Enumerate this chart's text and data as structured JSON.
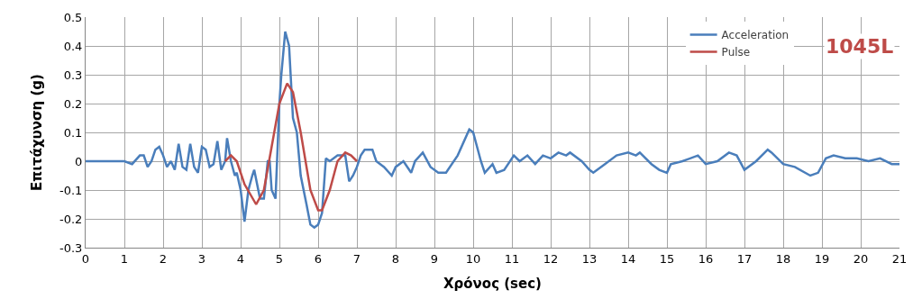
{
  "chart_data": {
    "type": "line",
    "xlabel": "Χρόνος (sec)",
    "ylabel": "Επιτάχυνση (g)",
    "xlim": [
      0,
      21
    ],
    "ylim": [
      -0.3,
      0.5
    ],
    "xticks": [
      0,
      1,
      2,
      3,
      4,
      5,
      6,
      7,
      8,
      9,
      10,
      11,
      12,
      13,
      14,
      15,
      16,
      17,
      18,
      19,
      20,
      21
    ],
    "yticks": [
      -0.3,
      -0.2,
      -0.1,
      0,
      0.1,
      0.2,
      0.3,
      0.4,
      0.5
    ],
    "grid": true,
    "legend": "top right",
    "marker": "none",
    "line_style": "solid",
    "annotations": [
      "1045L"
    ],
    "series": [
      {
        "name": "Acceleration",
        "color": "#4a7ebb",
        "x": [
          0,
          0.5,
          1.0,
          1.2,
          1.4,
          1.5,
          1.6,
          1.7,
          1.8,
          1.9,
          2.0,
          2.1,
          2.2,
          2.3,
          2.4,
          2.5,
          2.6,
          2.7,
          2.8,
          2.9,
          3.0,
          3.1,
          3.2,
          3.3,
          3.4,
          3.5,
          3.6,
          3.65,
          3.75,
          3.85,
          3.9,
          4.0,
          4.1,
          4.2,
          4.3,
          4.35,
          4.5,
          4.6,
          4.7,
          4.75,
          4.8,
          4.9,
          5.0,
          5.05,
          5.15,
          5.25,
          5.35,
          5.45,
          5.55,
          5.7,
          5.8,
          5.9,
          6.0,
          6.1,
          6.2,
          6.3,
          6.5,
          6.7,
          6.8,
          6.9,
          7.0,
          7.1,
          7.2,
          7.4,
          7.5,
          7.7,
          7.9,
          8.0,
          8.2,
          8.4,
          8.5,
          8.7,
          8.9,
          9.1,
          9.3,
          9.6,
          9.9,
          10.0,
          10.2,
          10.3,
          10.5,
          10.6,
          10.8,
          11.05,
          11.2,
          11.4,
          11.6,
          11.8,
          12.0,
          12.2,
          12.4,
          12.5,
          12.8,
          13.0,
          13.1,
          13.4,
          13.7,
          14.0,
          14.2,
          14.3,
          14.6,
          14.8,
          15.0,
          15.1,
          15.4,
          15.8,
          16.0,
          16.3,
          16.6,
          16.8,
          17.0,
          17.3,
          17.6,
          17.7,
          18.0,
          18.3,
          18.7,
          18.9,
          19.1,
          19.3,
          19.6,
          19.9,
          20.2,
          20.5,
          20.8,
          21.0
        ],
        "values": [
          0,
          0,
          0,
          -0.01,
          0.02,
          0.02,
          -0.02,
          0.0,
          0.04,
          0.05,
          0.02,
          -0.02,
          0.0,
          -0.03,
          0.06,
          -0.02,
          -0.03,
          0.06,
          -0.02,
          -0.04,
          0.05,
          0.04,
          -0.02,
          -0.01,
          0.07,
          -0.03,
          0.0,
          0.08,
          0.0,
          -0.05,
          -0.04,
          -0.1,
          -0.21,
          -0.1,
          -0.05,
          -0.03,
          -0.13,
          -0.13,
          0.0,
          0.0,
          -0.1,
          -0.13,
          0.2,
          0.3,
          0.45,
          0.4,
          0.15,
          0.1,
          -0.05,
          -0.15,
          -0.22,
          -0.23,
          -0.22,
          -0.18,
          0.01,
          0.0,
          0.02,
          0.02,
          -0.07,
          -0.05,
          -0.02,
          0.02,
          0.04,
          0.04,
          0.0,
          -0.02,
          -0.05,
          -0.02,
          0.0,
          -0.04,
          0.0,
          0.03,
          -0.02,
          -0.04,
          -0.04,
          0.02,
          0.11,
          0.1,
          0.0,
          -0.04,
          -0.01,
          -0.04,
          -0.03,
          0.02,
          0.0,
          0.02,
          -0.01,
          0.02,
          0.01,
          0.03,
          0.02,
          0.03,
          0.0,
          -0.03,
          -0.04,
          -0.01,
          0.02,
          0.03,
          0.02,
          0.03,
          -0.01,
          -0.03,
          -0.04,
          -0.01,
          0.0,
          0.02,
          -0.01,
          0.0,
          0.03,
          0.02,
          -0.03,
          0.0,
          0.04,
          0.03,
          -0.01,
          -0.02,
          -0.05,
          -0.04,
          0.01,
          0.02,
          0.01,
          0.01,
          0.0,
          0.01,
          -0.01,
          -0.01
        ]
      },
      {
        "name": "Pulse",
        "color": "#be4b48",
        "x": [
          3.6,
          3.75,
          3.9,
          4.1,
          4.4,
          4.6,
          4.8,
          5.0,
          5.2,
          5.35,
          5.55,
          5.8,
          6.0,
          6.1,
          6.3,
          6.5,
          6.7,
          6.85,
          7.0
        ],
        "values": [
          0.0,
          0.02,
          0.0,
          -0.08,
          -0.15,
          -0.1,
          0.05,
          0.2,
          0.27,
          0.24,
          0.1,
          -0.1,
          -0.17,
          -0.17,
          -0.1,
          0.0,
          0.03,
          0.02,
          0.0
        ]
      }
    ]
  }
}
